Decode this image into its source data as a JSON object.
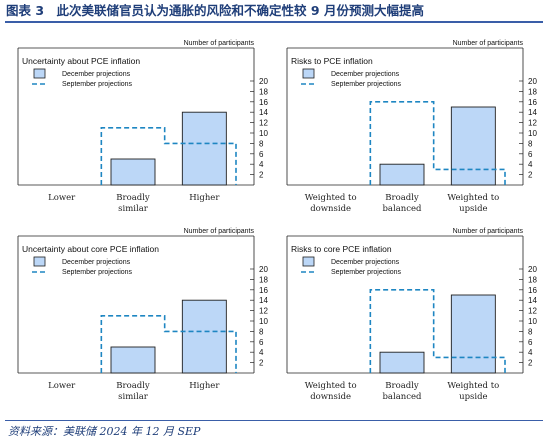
{
  "figure": {
    "title": "图表 3　此次美联储官员认为通胀的风险和不确定性较 9 月份预测大幅提高",
    "source": "资料来源：美联储 2024 年 12 月 SEP"
  },
  "colors": {
    "bar_fill": "#bcd7f7",
    "bar_stroke": "#1f1f1f",
    "dashed_line": "#1e86c2",
    "title_blue": "#1f3e79"
  },
  "chart_data": [
    {
      "type": "bar",
      "title": "Uncertainty about PCE inflation",
      "participants_label": "Number of participants",
      "legend": [
        {
          "label": "December projections",
          "style": "bar"
        },
        {
          "label": "September projections",
          "style": "dashed"
        }
      ],
      "categories": [
        "Lower",
        "Broadly similar",
        "Higher"
      ],
      "category_lines": [
        [
          "Lower"
        ],
        [
          "Broadly",
          "similar"
        ],
        [
          "Higher"
        ]
      ],
      "series": [
        {
          "name": "December projections",
          "values": [
            0,
            5,
            14
          ]
        },
        {
          "name": "September projections",
          "values": [
            0,
            11,
            8
          ]
        }
      ],
      "yticks": [
        2,
        4,
        6,
        8,
        10,
        12,
        14,
        16,
        18,
        20
      ],
      "ylim": [
        0,
        20
      ],
      "yaxis_side": "right",
      "legend_placement": "top-left"
    },
    {
      "type": "bar",
      "title": "Risks to PCE inflation",
      "participants_label": "Number of participants",
      "legend": [
        {
          "label": "December projections",
          "style": "bar"
        },
        {
          "label": "September projections",
          "style": "dashed"
        }
      ],
      "categories": [
        "Weighted to downside",
        "Broadly balanced",
        "Weighted to upside"
      ],
      "category_lines": [
        [
          "Weighted to",
          "downside"
        ],
        [
          "Broadly",
          "balanced"
        ],
        [
          "Weighted to",
          "upside"
        ]
      ],
      "series": [
        {
          "name": "December projections",
          "values": [
            0,
            4,
            15
          ]
        },
        {
          "name": "September projections",
          "values": [
            0,
            16,
            3
          ]
        }
      ],
      "yticks": [
        2,
        4,
        6,
        8,
        10,
        12,
        14,
        16,
        18,
        20
      ],
      "ylim": [
        0,
        20
      ],
      "yaxis_side": "right",
      "legend_placement": "top-left"
    },
    {
      "type": "bar",
      "title": "Uncertainty about core PCE inflation",
      "participants_label": "Number of participants",
      "legend": [
        {
          "label": "December projections",
          "style": "bar"
        },
        {
          "label": "September projections",
          "style": "dashed"
        }
      ],
      "categories": [
        "Lower",
        "Broadly similar",
        "Higher"
      ],
      "category_lines": [
        [
          "Lower"
        ],
        [
          "Broadly",
          "similar"
        ],
        [
          "Higher"
        ]
      ],
      "series": [
        {
          "name": "December projections",
          "values": [
            0,
            5,
            14
          ]
        },
        {
          "name": "September projections",
          "values": [
            0,
            11,
            8
          ]
        }
      ],
      "yticks": [
        2,
        4,
        6,
        8,
        10,
        12,
        14,
        16,
        18,
        20
      ],
      "ylim": [
        0,
        20
      ],
      "yaxis_side": "right",
      "legend_placement": "top-left"
    },
    {
      "type": "bar",
      "title": "Risks to core PCE inflation",
      "participants_label": "Number of participants",
      "legend": [
        {
          "label": "December projections",
          "style": "bar"
        },
        {
          "label": "September projections",
          "style": "dashed"
        }
      ],
      "categories": [
        "Weighted to downside",
        "Broadly balanced",
        "Weighted to upside"
      ],
      "category_lines": [
        [
          "Weighted to",
          "downside"
        ],
        [
          "Broadly",
          "balanced"
        ],
        [
          "Weighted to",
          "upside"
        ]
      ],
      "series": [
        {
          "name": "December projections",
          "values": [
            0,
            4,
            15
          ]
        },
        {
          "name": "September projections",
          "values": [
            0,
            16,
            3
          ]
        }
      ],
      "yticks": [
        2,
        4,
        6,
        8,
        10,
        12,
        14,
        16,
        18,
        20
      ],
      "ylim": [
        0,
        20
      ],
      "yaxis_side": "right",
      "legend_placement": "top-left"
    }
  ]
}
